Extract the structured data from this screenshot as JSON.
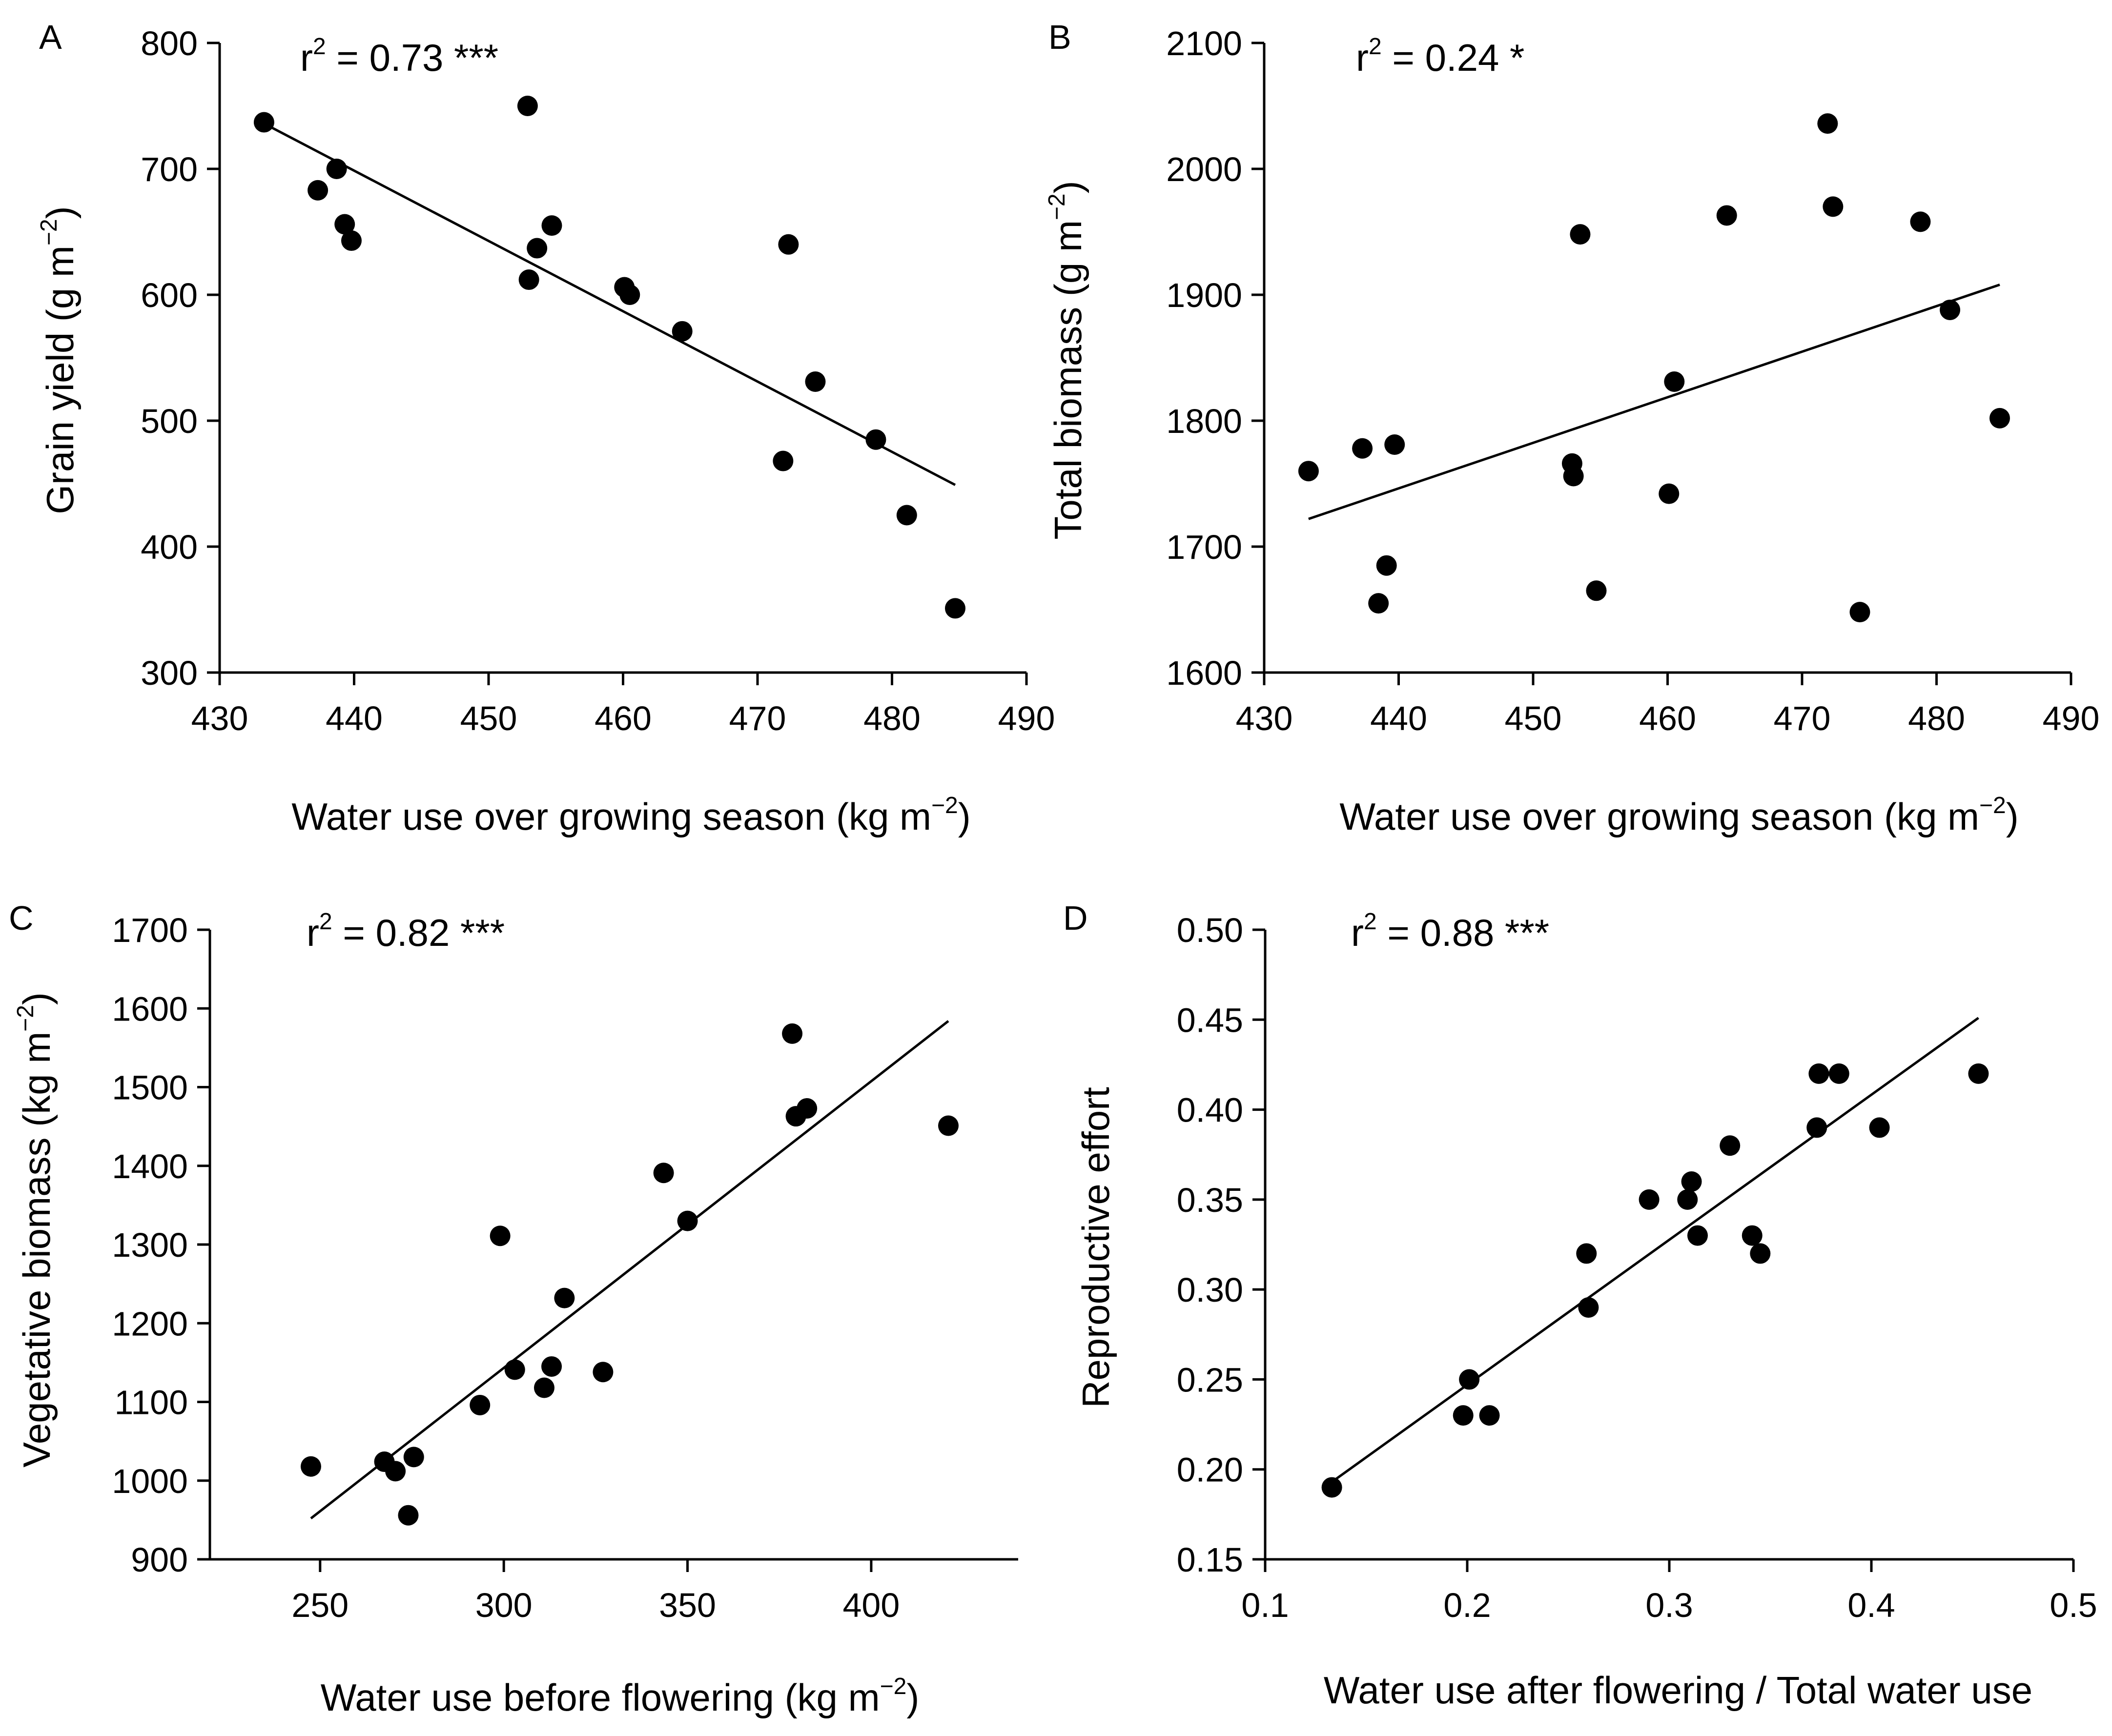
{
  "chart_data": [
    {
      "panel": "A",
      "type": "scatter",
      "xlabel": "Water use over growing season (kg m",
      "xlabel_sup": "−2",
      "xlabel_end": ")",
      "ylabel": "Grain yield (g m",
      "ylabel_sup": "−2",
      "ylabel_end": ")",
      "xlim": [
        430,
        490
      ],
      "ylim": [
        300,
        800
      ],
      "xticks": [
        "430",
        "440",
        "450",
        "460",
        "470",
        "480",
        "490"
      ],
      "yticks": [
        "300",
        "400",
        "500",
        "600",
        "700",
        "800"
      ],
      "r2_prefix": "r",
      "r2_sup": "2",
      "r2_text": " = 0.73 ***",
      "points": [
        [
          433.3,
          737
        ],
        [
          437.3,
          683
        ],
        [
          438.7,
          700
        ],
        [
          439.3,
          656
        ],
        [
          439.8,
          643
        ],
        [
          452.9,
          750
        ],
        [
          453.0,
          612
        ],
        [
          453.6,
          637
        ],
        [
          454.7,
          655
        ],
        [
          460.1,
          606
        ],
        [
          460.5,
          600
        ],
        [
          464.4,
          571
        ],
        [
          471.9,
          468
        ],
        [
          472.3,
          640
        ],
        [
          474.3,
          531
        ],
        [
          478.8,
          485
        ],
        [
          481.1,
          425
        ],
        [
          484.7,
          351
        ]
      ],
      "fit": [
        [
          433.3,
          736
        ],
        [
          484.7,
          449
        ]
      ]
    },
    {
      "panel": "B",
      "type": "scatter",
      "xlabel": "Water use over growing season (kg m",
      "xlabel_sup": "−2",
      "xlabel_end": ")",
      "ylabel": "Total biomass (g m",
      "ylabel_sup": "−2",
      "ylabel_end": ")",
      "xlim": [
        430,
        490
      ],
      "ylim": [
        1600,
        2100
      ],
      "xticks": [
        "430",
        "440",
        "450",
        "460",
        "470",
        "480",
        "490"
      ],
      "yticks": [
        "1600",
        "1700",
        "1800",
        "1900",
        "2000",
        "2100"
      ],
      "r2_prefix": "r",
      "r2_sup": "2",
      "r2_text": " = 0.24 *",
      "points": [
        [
          433.3,
          1760
        ],
        [
          437.3,
          1778
        ],
        [
          438.5,
          1655
        ],
        [
          439.1,
          1685
        ],
        [
          439.7,
          1781
        ],
        [
          452.9,
          1766
        ],
        [
          453.0,
          1756
        ],
        [
          453.5,
          1948
        ],
        [
          454.7,
          1665
        ],
        [
          460.1,
          1742
        ],
        [
          460.5,
          1831
        ],
        [
          464.4,
          1963
        ],
        [
          471.9,
          2036
        ],
        [
          472.3,
          1970
        ],
        [
          474.3,
          1648
        ],
        [
          478.8,
          1958
        ],
        [
          481.0,
          1888
        ],
        [
          484.7,
          1802
        ]
      ],
      "fit": [
        [
          433.3,
          1722
        ],
        [
          484.7,
          1908
        ]
      ]
    },
    {
      "panel": "C",
      "type": "scatter",
      "xlabel": "Water use before flowering (kg m",
      "xlabel_sup": "−2",
      "xlabel_end": ")",
      "ylabel": "Vegetative biomass (kg m",
      "ylabel_sup": "−2",
      "ylabel_end": ")",
      "xlim": [
        220,
        440
      ],
      "ylim": [
        900,
        1700
      ],
      "xticks": [
        "250",
        "300",
        "350",
        "400"
      ],
      "xtick_values": [
        250,
        300,
        350,
        400
      ],
      "yticks": [
        "900",
        "1000",
        "1100",
        "1200",
        "1300",
        "1400",
        "1500",
        "1600",
        "1700"
      ],
      "r2_prefix": "r",
      "r2_sup": "2",
      "r2_text": " = 0.82 ***",
      "points": [
        [
          247.5,
          1018
        ],
        [
          267.5,
          1024
        ],
        [
          270.5,
          1012
        ],
        [
          274.0,
          956
        ],
        [
          275.5,
          1030
        ],
        [
          293.5,
          1096
        ],
        [
          299.0,
          1311
        ],
        [
          303.0,
          1141
        ],
        [
          311.0,
          1118
        ],
        [
          313.0,
          1145
        ],
        [
          316.5,
          1232
        ],
        [
          327.0,
          1138
        ],
        [
          343.5,
          1391
        ],
        [
          350.0,
          1330
        ],
        [
          378.5,
          1568
        ],
        [
          379.5,
          1463
        ],
        [
          382.5,
          1473
        ],
        [
          421.0,
          1451
        ]
      ],
      "fit": [
        [
          247.5,
          952
        ],
        [
          421.0,
          1584
        ]
      ]
    },
    {
      "panel": "D",
      "type": "scatter",
      "xlabel": "Water use after flowering / Total water use",
      "ylabel": "Reproductive effort",
      "xlim": [
        0.1,
        0.5
      ],
      "ylim": [
        0.15,
        0.5
      ],
      "xticks": [
        "0.1",
        "0.2",
        "0.3",
        "0.4",
        "0.5"
      ],
      "yticks": [
        "0.15",
        "0.20",
        "0.25",
        "0.30",
        "0.35",
        "0.40",
        "0.45",
        "0.50"
      ],
      "r2_prefix": "r",
      "r2_sup": "2",
      "r2_text": " = 0.88 ***",
      "points": [
        [
          0.133,
          0.19
        ],
        [
          0.198,
          0.23
        ],
        [
          0.201,
          0.25
        ],
        [
          0.211,
          0.23
        ],
        [
          0.259,
          0.32
        ],
        [
          0.26,
          0.29
        ],
        [
          0.29,
          0.35
        ],
        [
          0.309,
          0.35
        ],
        [
          0.311,
          0.36
        ],
        [
          0.314,
          0.33
        ],
        [
          0.33,
          0.38
        ],
        [
          0.341,
          0.33
        ],
        [
          0.345,
          0.32
        ],
        [
          0.373,
          0.39
        ],
        [
          0.374,
          0.42
        ],
        [
          0.384,
          0.42
        ],
        [
          0.404,
          0.39
        ],
        [
          0.453,
          0.42
        ]
      ],
      "fit": [
        [
          0.133,
          0.193
        ],
        [
          0.453,
          0.451
        ]
      ]
    }
  ]
}
